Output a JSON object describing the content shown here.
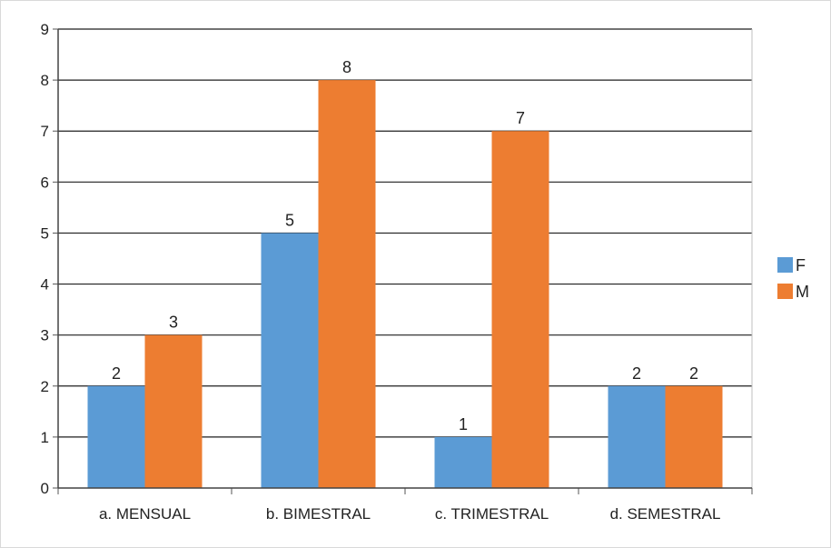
{
  "chart_data": {
    "type": "bar",
    "categories": [
      "a. MENSUAL",
      "b. BIMESTRAL",
      "c. TRIMESTRAL",
      "d. SEMESTRAL"
    ],
    "series": [
      {
        "name": "F",
        "values": [
          2,
          5,
          1,
          2
        ],
        "color": "#5b9bd5"
      },
      {
        "name": "M",
        "values": [
          3,
          8,
          7,
          2
        ],
        "color": "#ed7d31"
      }
    ],
    "title": "",
    "xlabel": "",
    "ylabel": "",
    "ylim": [
      0,
      9
    ],
    "yticks": [
      "0",
      "1",
      "2",
      "3",
      "4",
      "5",
      "6",
      "7",
      "8",
      "9"
    ],
    "grid": true,
    "data_labels": true,
    "legend": "right"
  }
}
